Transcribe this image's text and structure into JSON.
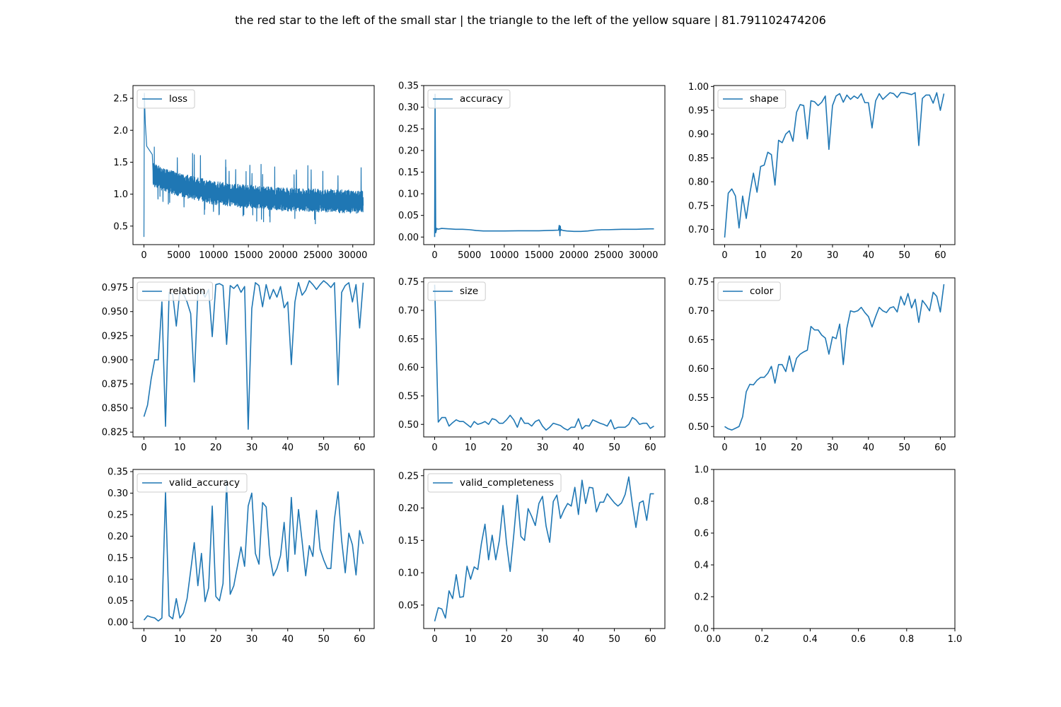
{
  "figure": {
    "title": "the red star to the left of the small star | the triangle to the left of the yellow square | 81.791102474206"
  },
  "colors": {
    "line": "#1f77b4",
    "axes": "#000000",
    "legend_border": "#cccccc"
  },
  "chart_data": [
    {
      "type": "line",
      "series": [
        {
          "name": "loss"
        }
      ],
      "noisy": true,
      "x_range": [
        0,
        31500
      ],
      "baseline": [
        [
          0,
          1.45
        ],
        [
          1000,
          1.32
        ],
        [
          3000,
          1.22
        ],
        [
          5000,
          1.15
        ],
        [
          10000,
          1.02
        ],
        [
          15000,
          0.96
        ],
        [
          20000,
          0.92
        ],
        [
          25000,
          0.9
        ],
        [
          31500,
          0.88
        ]
      ],
      "spread": 0.14,
      "spikes": [
        [
          0,
          0.33
        ],
        [
          60,
          2.58
        ],
        [
          200,
          2.1
        ],
        [
          400,
          1.75
        ],
        [
          1200,
          1.62
        ]
      ],
      "xlim": [
        -1575,
        33075
      ],
      "ylim": [
        0.21,
        2.7
      ],
      "xticks": [
        0,
        5000,
        10000,
        15000,
        20000,
        25000,
        30000
      ],
      "yticks": [
        0.5,
        1.0,
        1.5,
        2.0,
        2.5
      ],
      "xtick_labels": [
        "0",
        "5000",
        "10000",
        "15000",
        "20000",
        "25000",
        "30000"
      ],
      "ytick_labels": [
        "0.5",
        "1.0",
        "1.5",
        "2.0",
        "2.5"
      ],
      "legend_position": "upper-left"
    },
    {
      "type": "line",
      "series": [
        {
          "name": "accuracy",
          "x": [
            0,
            60,
            150,
            300,
            500,
            1000,
            2000,
            3000,
            4000,
            5000,
            6000,
            7000,
            8000,
            9000,
            10000,
            11000,
            12000,
            13000,
            14000,
            15000,
            16000,
            17000,
            17800,
            17900,
            18000,
            18050,
            18100,
            18200,
            18300,
            18500,
            19000,
            20000,
            21000,
            22000,
            23000,
            24000,
            25000,
            26000,
            27000,
            28000,
            29000,
            30000,
            31000,
            31500
          ],
          "values": [
            0.0,
            0.33,
            0.01,
            0.02,
            0.018,
            0.02,
            0.019,
            0.018,
            0.018,
            0.017,
            0.015,
            0.014,
            0.014,
            0.014,
            0.014,
            0.0143,
            0.0145,
            0.0145,
            0.0145,
            0.0145,
            0.015,
            0.0155,
            0.016,
            0.027,
            0.003,
            0.025,
            0.015,
            0.017,
            0.016,
            0.015,
            0.014,
            0.013,
            0.013,
            0.014,
            0.016,
            0.017,
            0.017,
            0.0175,
            0.018,
            0.018,
            0.018,
            0.0185,
            0.019,
            0.019
          ]
        }
      ],
      "xlim": [
        -1575,
        33075
      ],
      "ylim": [
        -0.0175,
        0.35
      ],
      "xticks": [
        0,
        5000,
        10000,
        15000,
        20000,
        25000,
        30000
      ],
      "yticks": [
        0.0,
        0.05,
        0.1,
        0.15,
        0.2,
        0.25,
        0.3,
        0.35
      ],
      "xtick_labels": [
        "0",
        "5000",
        "10000",
        "15000",
        "20000",
        "25000",
        "30000"
      ],
      "ytick_labels": [
        "0.00",
        "0.05",
        "0.10",
        "0.15",
        "0.20",
        "0.25",
        "0.30",
        "0.35"
      ],
      "legend_position": "upper-left"
    },
    {
      "type": "line",
      "series": [
        {
          "name": "shape",
          "values": [
            0.683,
            0.776,
            0.785,
            0.77,
            0.703,
            0.77,
            0.723,
            0.775,
            0.818,
            0.778,
            0.832,
            0.835,
            0.862,
            0.857,
            0.793,
            0.887,
            0.882,
            0.9,
            0.907,
            0.885,
            0.946,
            0.962,
            0.96,
            0.89,
            0.97,
            0.968,
            0.96,
            0.967,
            0.98,
            0.868,
            0.96,
            0.98,
            0.985,
            0.967,
            0.982,
            0.973,
            0.98,
            0.975,
            0.985,
            0.966,
            0.966,
            0.913,
            0.97,
            0.985,
            0.973,
            0.98,
            0.987,
            0.985,
            0.977,
            0.987,
            0.987,
            0.985,
            0.983,
            0.987,
            0.876,
            0.975,
            0.982,
            0.982,
            0.965,
            0.987,
            0.95,
            0.985
          ]
        }
      ],
      "xlim": [
        -3.05,
        64.05
      ],
      "ylim": [
        0.668,
        1.002
      ],
      "xticks": [
        0,
        10,
        20,
        30,
        40,
        50,
        60
      ],
      "yticks": [
        0.7,
        0.75,
        0.8,
        0.85,
        0.9,
        0.95,
        1.0
      ],
      "xtick_labels": [
        "0",
        "10",
        "20",
        "30",
        "40",
        "50",
        "60"
      ],
      "ytick_labels": [
        "0.70",
        "0.75",
        "0.80",
        "0.85",
        "0.90",
        "0.95",
        "1.00"
      ],
      "legend_position": "upper-left"
    },
    {
      "type": "line",
      "series": [
        {
          "name": "relation",
          "values": [
            0.841,
            0.853,
            0.88,
            0.9,
            0.9,
            0.96,
            0.831,
            0.97,
            0.968,
            0.935,
            0.972,
            0.968,
            0.96,
            0.948,
            0.877,
            0.97,
            0.972,
            0.965,
            0.973,
            0.924,
            0.978,
            0.979,
            0.977,
            0.916,
            0.977,
            0.974,
            0.978,
            0.97,
            0.976,
            0.828,
            0.953,
            0.98,
            0.977,
            0.955,
            0.978,
            0.963,
            0.973,
            0.965,
            0.976,
            0.954,
            0.96,
            0.895,
            0.96,
            0.98,
            0.967,
            0.972,
            0.982,
            0.978,
            0.973,
            0.978,
            0.982,
            0.979,
            0.975,
            0.98,
            0.874,
            0.97,
            0.977,
            0.98,
            0.96,
            0.978,
            0.933,
            0.98
          ]
        }
      ],
      "xlim": [
        -3.05,
        64.05
      ],
      "ylim": [
        0.82,
        0.985
      ],
      "xticks": [
        0,
        10,
        20,
        30,
        40,
        50,
        60
      ],
      "yticks": [
        0.825,
        0.85,
        0.875,
        0.9,
        0.925,
        0.95,
        0.975
      ],
      "xtick_labels": [
        "0",
        "10",
        "20",
        "30",
        "40",
        "50",
        "60"
      ],
      "ytick_labels": [
        "0.825",
        "0.850",
        "0.875",
        "0.900",
        "0.925",
        "0.950",
        "0.975"
      ],
      "legend_position": "upper-left"
    },
    {
      "type": "line",
      "series": [
        {
          "name": "size",
          "values": [
            0.745,
            0.504,
            0.512,
            0.512,
            0.497,
            0.503,
            0.508,
            0.505,
            0.505,
            0.5,
            0.495,
            0.505,
            0.5,
            0.502,
            0.505,
            0.5,
            0.51,
            0.508,
            0.502,
            0.502,
            0.508,
            0.516,
            0.508,
            0.495,
            0.512,
            0.502,
            0.502,
            0.497,
            0.505,
            0.508,
            0.497,
            0.49,
            0.495,
            0.502,
            0.5,
            0.498,
            0.493,
            0.49,
            0.495,
            0.495,
            0.51,
            0.492,
            0.498,
            0.497,
            0.508,
            0.505,
            0.502,
            0.5,
            0.497,
            0.508,
            0.492,
            0.495,
            0.495,
            0.495,
            0.5,
            0.512,
            0.508,
            0.5,
            0.502,
            0.502,
            0.493,
            0.497
          ]
        }
      ],
      "xlim": [
        -3.05,
        64.05
      ],
      "ylim": [
        0.478,
        0.757
      ],
      "xticks": [
        0,
        10,
        20,
        30,
        40,
        50,
        60
      ],
      "yticks": [
        0.5,
        0.55,
        0.6,
        0.65,
        0.7,
        0.75
      ],
      "xtick_labels": [
        "0",
        "10",
        "20",
        "30",
        "40",
        "50",
        "60"
      ],
      "ytick_labels": [
        "0.50",
        "0.55",
        "0.60",
        "0.65",
        "0.70",
        "0.75"
      ],
      "legend_position": "upper-left"
    },
    {
      "type": "line",
      "series": [
        {
          "name": "color",
          "values": [
            0.5,
            0.496,
            0.494,
            0.497,
            0.5,
            0.517,
            0.56,
            0.573,
            0.572,
            0.58,
            0.585,
            0.585,
            0.592,
            0.604,
            0.575,
            0.607,
            0.607,
            0.595,
            0.622,
            0.595,
            0.618,
            0.625,
            0.629,
            0.632,
            0.673,
            0.667,
            0.667,
            0.658,
            0.653,
            0.625,
            0.655,
            0.652,
            0.677,
            0.607,
            0.67,
            0.7,
            0.698,
            0.7,
            0.706,
            0.697,
            0.69,
            0.672,
            0.69,
            0.706,
            0.7,
            0.697,
            0.705,
            0.707,
            0.698,
            0.725,
            0.71,
            0.73,
            0.705,
            0.72,
            0.68,
            0.718,
            0.71,
            0.7,
            0.732,
            0.725,
            0.698,
            0.746
          ]
        }
      ],
      "xlim": [
        -3.05,
        64.05
      ],
      "ylim": [
        0.482,
        0.757
      ],
      "xticks": [
        0,
        10,
        20,
        30,
        40,
        50,
        60
      ],
      "yticks": [
        0.5,
        0.55,
        0.6,
        0.65,
        0.7,
        0.75
      ],
      "xtick_labels": [
        "0",
        "10",
        "20",
        "30",
        "40",
        "50",
        "60"
      ],
      "ytick_labels": [
        "0.50",
        "0.55",
        "0.60",
        "0.65",
        "0.70",
        "0.75"
      ],
      "legend_position": "upper-left"
    },
    {
      "type": "line",
      "series": [
        {
          "name": "valid_accuracy",
          "values": [
            0.005,
            0.015,
            0.012,
            0.01,
            0.003,
            0.01,
            0.303,
            0.015,
            0.008,
            0.055,
            0.01,
            0.022,
            0.055,
            0.12,
            0.185,
            0.085,
            0.16,
            0.048,
            0.08,
            0.27,
            0.06,
            0.05,
            0.09,
            0.33,
            0.065,
            0.085,
            0.13,
            0.175,
            0.13,
            0.27,
            0.3,
            0.16,
            0.135,
            0.278,
            0.268,
            0.155,
            0.108,
            0.125,
            0.155,
            0.232,
            0.118,
            0.29,
            0.158,
            0.262,
            0.188,
            0.108,
            0.178,
            0.153,
            0.26,
            0.17,
            0.145,
            0.125,
            0.125,
            0.24,
            0.303,
            0.19,
            0.115,
            0.207,
            0.18,
            0.11,
            0.213,
            0.182
          ]
        }
      ],
      "xlim": [
        -3.05,
        64.05
      ],
      "ylim": [
        -0.0145,
        0.355
      ],
      "xticks": [
        0,
        10,
        20,
        30,
        40,
        50,
        60
      ],
      "yticks": [
        0.0,
        0.05,
        0.1,
        0.15,
        0.2,
        0.25,
        0.3,
        0.35
      ],
      "xtick_labels": [
        "0",
        "10",
        "20",
        "30",
        "40",
        "50",
        "60"
      ],
      "ytick_labels": [
        "0.00",
        "0.05",
        "0.10",
        "0.15",
        "0.20",
        "0.25",
        "0.30",
        "0.35"
      ],
      "legend_position": "upper-left"
    },
    {
      "type": "line",
      "series": [
        {
          "name": "valid_completeness",
          "values": [
            0.025,
            0.046,
            0.044,
            0.03,
            0.072,
            0.06,
            0.097,
            0.062,
            0.063,
            0.11,
            0.09,
            0.109,
            0.105,
            0.145,
            0.175,
            0.12,
            0.158,
            0.12,
            0.15,
            0.204,
            0.145,
            0.102,
            0.158,
            0.22,
            0.156,
            0.15,
            0.199,
            0.187,
            0.173,
            0.207,
            0.218,
            0.172,
            0.147,
            0.21,
            0.22,
            0.184,
            0.197,
            0.207,
            0.203,
            0.232,
            0.19,
            0.243,
            0.207,
            0.232,
            0.231,
            0.194,
            0.209,
            0.209,
            0.222,
            0.215,
            0.208,
            0.203,
            0.208,
            0.221,
            0.248,
            0.205,
            0.17,
            0.208,
            0.211,
            0.181,
            0.222,
            0.222
          ]
        }
      ],
      "xlim": [
        -3.05,
        64.05
      ],
      "ylim": [
        0.0138,
        0.2596
      ],
      "xticks": [
        0,
        10,
        20,
        30,
        40,
        50,
        60
      ],
      "yticks": [
        0.05,
        0.1,
        0.15,
        0.2,
        0.25
      ],
      "xtick_labels": [
        "0",
        "10",
        "20",
        "30",
        "40",
        "50",
        "60"
      ],
      "ytick_labels": [
        "0.05",
        "0.10",
        "0.15",
        "0.20",
        "0.25"
      ],
      "legend_position": "upper-left"
    },
    {
      "type": "line",
      "series": [],
      "xlim": [
        0,
        1
      ],
      "ylim": [
        0,
        1
      ],
      "xticks": [
        0,
        0.2,
        0.4,
        0.6,
        0.8,
        1.0
      ],
      "yticks": [
        0,
        0.2,
        0.4,
        0.6,
        0.8,
        1.0
      ],
      "xtick_labels": [
        "0.0",
        "0.2",
        "0.4",
        "0.6",
        "0.8",
        "1.0"
      ],
      "ytick_labels": [
        "0.0",
        "0.2",
        "0.4",
        "0.6",
        "0.8",
        "1.0"
      ]
    }
  ]
}
